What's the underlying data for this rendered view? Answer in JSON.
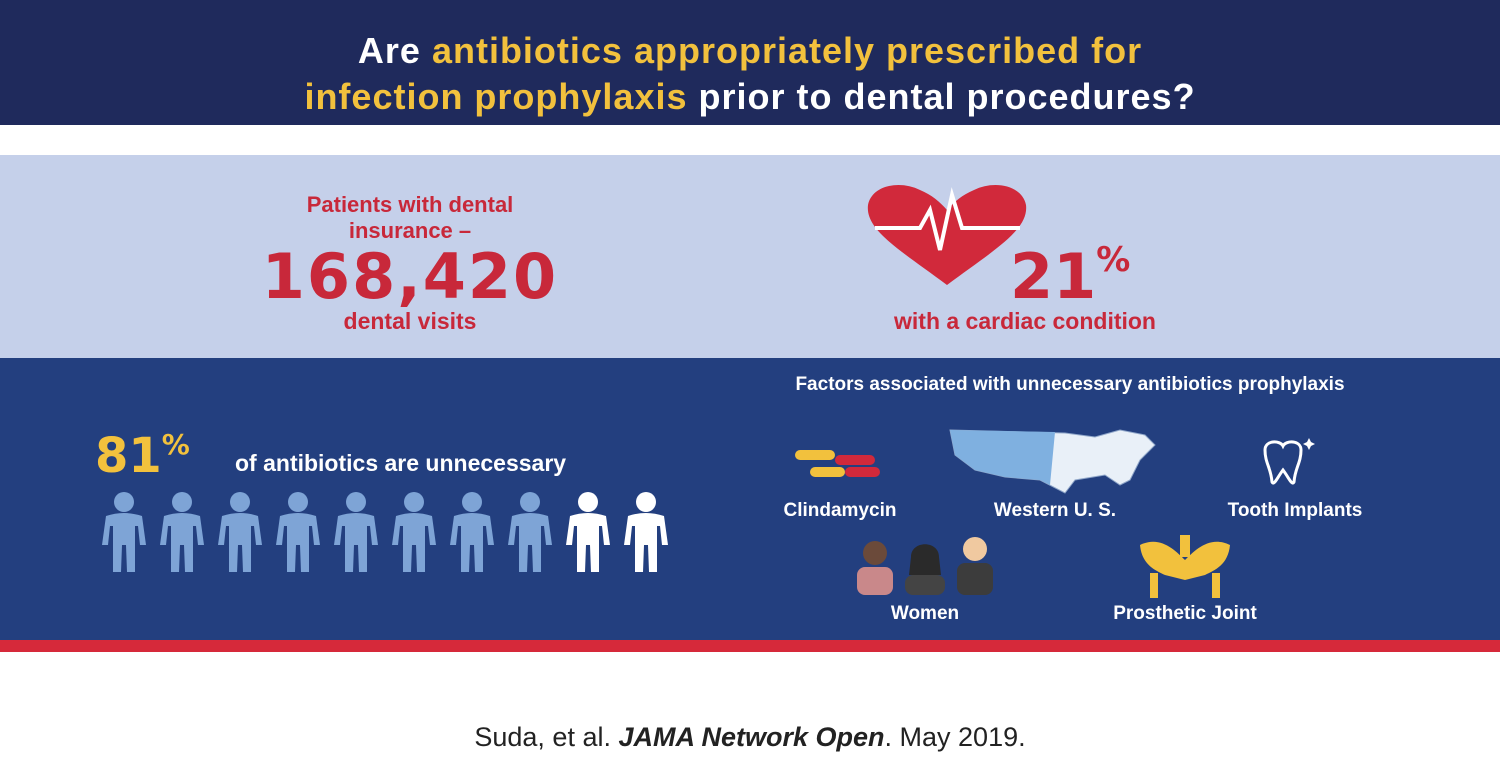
{
  "header": {
    "title": {
      "parts": [
        "Are ",
        "antibiotics appropriately prescribed for",
        "infection prophylaxis",
        " prior to dental procedures?"
      ]
    }
  },
  "stats": {
    "visits": {
      "label": "Patients with dental insurance –",
      "number": "168,420",
      "unit": "dental visits"
    },
    "cardiac": {
      "number": "21",
      "percent": "%",
      "label": "with a cardiac condition"
    },
    "unnecessary": {
      "number": "81",
      "percent": "%",
      "label": "of antibiotics are unnecessary"
    }
  },
  "factors": {
    "title": "Factors associated with unnecessary antibiotics prophylaxis",
    "items": [
      "Clindamycin",
      "Western U. S.",
      "Tooth Implants",
      "Women",
      "Prosthetic Joint"
    ]
  },
  "citation": {
    "authors": "Suda, et al. ",
    "journal": "JAMA Network Open",
    "date": ". May 2019."
  }
}
